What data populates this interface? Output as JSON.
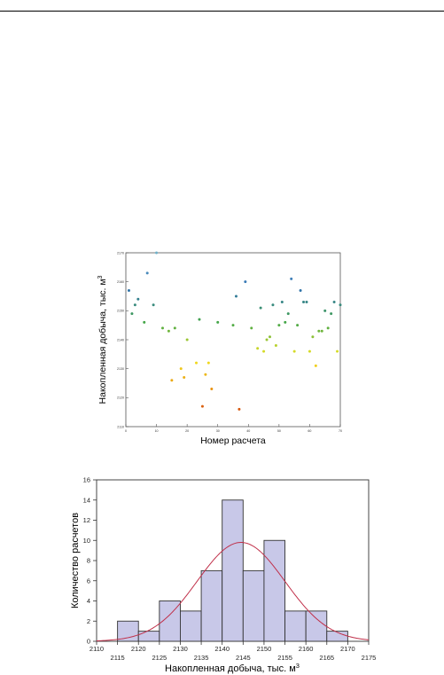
{
  "chart_data": [
    {
      "type": "scatter",
      "title": "",
      "xlabel": "Номер расчета",
      "ylabel": "Накопленная добыча, тыс. м",
      "ylabel_superscript": "3",
      "xlim": [
        0,
        70
      ],
      "ylim": [
        2110,
        2170
      ],
      "xticks": [
        "0",
        "10",
        "20",
        "30",
        "40",
        "50",
        "60",
        "70"
      ],
      "yticks": [
        "2110",
        "2120",
        "2130",
        "2140",
        "2150",
        "2160",
        "2170"
      ],
      "grid": false,
      "colormap": [
        "#c62810",
        "#e88a10",
        "#f2e620",
        "#44a648",
        "#2e6fb2",
        "#70b0c8"
      ],
      "points": [
        {
          "x": 1,
          "y": 2157
        },
        {
          "x": 2,
          "y": 2149
        },
        {
          "x": 3,
          "y": 2152
        },
        {
          "x": 4,
          "y": 2154
        },
        {
          "x": 6,
          "y": 2146
        },
        {
          "x": 7,
          "y": 2163
        },
        {
          "x": 9,
          "y": 2152
        },
        {
          "x": 10,
          "y": 2170
        },
        {
          "x": 12,
          "y": 2144
        },
        {
          "x": 14,
          "y": 2143
        },
        {
          "x": 15,
          "y": 2126
        },
        {
          "x": 16,
          "y": 2144
        },
        {
          "x": 18,
          "y": 2130
        },
        {
          "x": 19,
          "y": 2127
        },
        {
          "x": 20,
          "y": 2140
        },
        {
          "x": 23,
          "y": 2132
        },
        {
          "x": 24,
          "y": 2147
        },
        {
          "x": 25,
          "y": 2117
        },
        {
          "x": 26,
          "y": 2128
        },
        {
          "x": 27,
          "y": 2132
        },
        {
          "x": 28,
          "y": 2123
        },
        {
          "x": 30,
          "y": 2146
        },
        {
          "x": 35,
          "y": 2145
        },
        {
          "x": 36,
          "y": 2155
        },
        {
          "x": 37,
          "y": 2116
        },
        {
          "x": 39,
          "y": 2160
        },
        {
          "x": 41,
          "y": 2144
        },
        {
          "x": 43,
          "y": 2137
        },
        {
          "x": 44,
          "y": 2151
        },
        {
          "x": 45,
          "y": 2136
        },
        {
          "x": 46,
          "y": 2140
        },
        {
          "x": 47,
          "y": 2141
        },
        {
          "x": 48,
          "y": 2152
        },
        {
          "x": 49,
          "y": 2138
        },
        {
          "x": 50,
          "y": 2145
        },
        {
          "x": 51,
          "y": 2153
        },
        {
          "x": 52,
          "y": 2146
        },
        {
          "x": 53,
          "y": 2149
        },
        {
          "x": 54,
          "y": 2161
        },
        {
          "x": 55,
          "y": 2136
        },
        {
          "x": 56,
          "y": 2145
        },
        {
          "x": 57,
          "y": 2157
        },
        {
          "x": 58,
          "y": 2153
        },
        {
          "x": 59,
          "y": 2153
        },
        {
          "x": 60,
          "y": 2136
        },
        {
          "x": 61,
          "y": 2141
        },
        {
          "x": 62,
          "y": 2131
        },
        {
          "x": 63,
          "y": 2143
        },
        {
          "x": 64,
          "y": 2143
        },
        {
          "x": 65,
          "y": 2150
        },
        {
          "x": 66,
          "y": 2144
        },
        {
          "x": 67,
          "y": 2149
        },
        {
          "x": 68,
          "y": 2153
        },
        {
          "x": 69,
          "y": 2136
        },
        {
          "x": 70,
          "y": 2152
        }
      ]
    },
    {
      "type": "bar",
      "title": "",
      "xlabel": "Накопленная добыча, тыс. м",
      "xlabel_superscript": "3",
      "ylabel": "Количество расчетов",
      "xlim": [
        2110,
        2175
      ],
      "ylim": [
        0,
        16
      ],
      "xticks_upper": [
        "2110",
        "2120",
        "2130",
        "2140",
        "2150",
        "2160",
        "2170"
      ],
      "xticks_lower": [
        "2115",
        "2125",
        "2135",
        "2145",
        "2155",
        "2165",
        "2175"
      ],
      "yticks": [
        "0",
        "2",
        "4",
        "6",
        "8",
        "10",
        "12",
        "14",
        "16"
      ],
      "bin_width": 5,
      "bins": [
        {
          "from": 2115,
          "to": 2120,
          "count": 2
        },
        {
          "from": 2120,
          "to": 2125,
          "count": 1
        },
        {
          "from": 2125,
          "to": 2130,
          "count": 4
        },
        {
          "from": 2130,
          "to": 2135,
          "count": 3
        },
        {
          "from": 2135,
          "to": 2140,
          "count": 7
        },
        {
          "from": 2140,
          "to": 2145,
          "count": 14
        },
        {
          "from": 2145,
          "to": 2150,
          "count": 7
        },
        {
          "from": 2150,
          "to": 2155,
          "count": 10
        },
        {
          "from": 2155,
          "to": 2160,
          "count": 3
        },
        {
          "from": 2160,
          "to": 2165,
          "count": 3
        },
        {
          "from": 2165,
          "to": 2170,
          "count": 1
        }
      ],
      "normal_fit": {
        "mean": 2144.5,
        "peak": 9.8,
        "sd": 10.5
      },
      "bar_fill": "#c8c8e8",
      "bar_stroke": "#333333",
      "curve_color": "#c0304a",
      "grid": false
    }
  ]
}
